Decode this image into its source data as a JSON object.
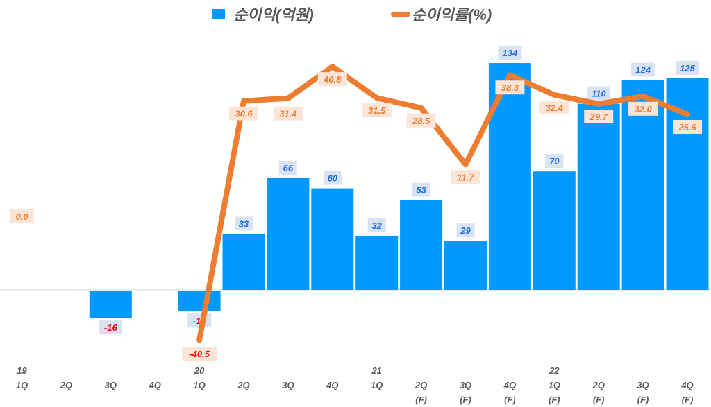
{
  "chart_data": {
    "type": "bar+line",
    "title": "",
    "legend": [
      {
        "name": "순이익(억원)",
        "type": "bar",
        "color": "#0099ff"
      },
      {
        "name": "순이익률(%)",
        "type": "line",
        "color": "#ed7d31"
      }
    ],
    "categories": [
      "19 1Q",
      "2Q",
      "3Q",
      "4Q",
      "20 1Q",
      "2Q",
      "3Q",
      "4Q",
      "21 1Q",
      "2Q (F)",
      "3Q (F)",
      "4Q (F)",
      "22 1Q (F)",
      "2Q (F)",
      "3Q (F)",
      "4Q (F)"
    ],
    "category_labels": [
      {
        "year": "19",
        "q": "1Q",
        "f": ""
      },
      {
        "year": "",
        "q": "2Q",
        "f": ""
      },
      {
        "year": "",
        "q": "3Q",
        "f": ""
      },
      {
        "year": "",
        "q": "4Q",
        "f": ""
      },
      {
        "year": "20",
        "q": "1Q",
        "f": ""
      },
      {
        "year": "",
        "q": "2Q",
        "f": ""
      },
      {
        "year": "",
        "q": "3Q",
        "f": ""
      },
      {
        "year": "",
        "q": "4Q",
        "f": ""
      },
      {
        "year": "21",
        "q": "1Q",
        "f": ""
      },
      {
        "year": "",
        "q": "2Q",
        "f": "(F)"
      },
      {
        "year": "",
        "q": "3Q",
        "f": "(F)"
      },
      {
        "year": "",
        "q": "4Q",
        "f": "(F)"
      },
      {
        "year": "22",
        "q": "1Q",
        "f": "(F)"
      },
      {
        "year": "",
        "q": "2Q",
        "f": "(F)"
      },
      {
        "year": "",
        "q": "3Q",
        "f": "(F)"
      },
      {
        "year": "",
        "q": "4Q",
        "f": "(F)"
      }
    ],
    "series": [
      {
        "name": "순이익(억원)",
        "type": "bar",
        "values": [
          null,
          null,
          -16,
          null,
          -12,
          33,
          66,
          60,
          32,
          53,
          29,
          134,
          70,
          110,
          124,
          125
        ]
      },
      {
        "name": "순이익률(%)",
        "type": "line",
        "values": [
          0.0,
          null,
          null,
          null,
          -40.5,
          30.6,
          31.4,
          40.8,
          31.5,
          28.5,
          11.7,
          38.3,
          32.4,
          29.7,
          32.0,
          26.6
        ]
      }
    ],
    "xlabel": "",
    "ylabel": "",
    "grid": false,
    "legend_position": "top"
  },
  "legend": {
    "bar_label": "순이익(억원)",
    "line_label": "순이익률(%)"
  }
}
